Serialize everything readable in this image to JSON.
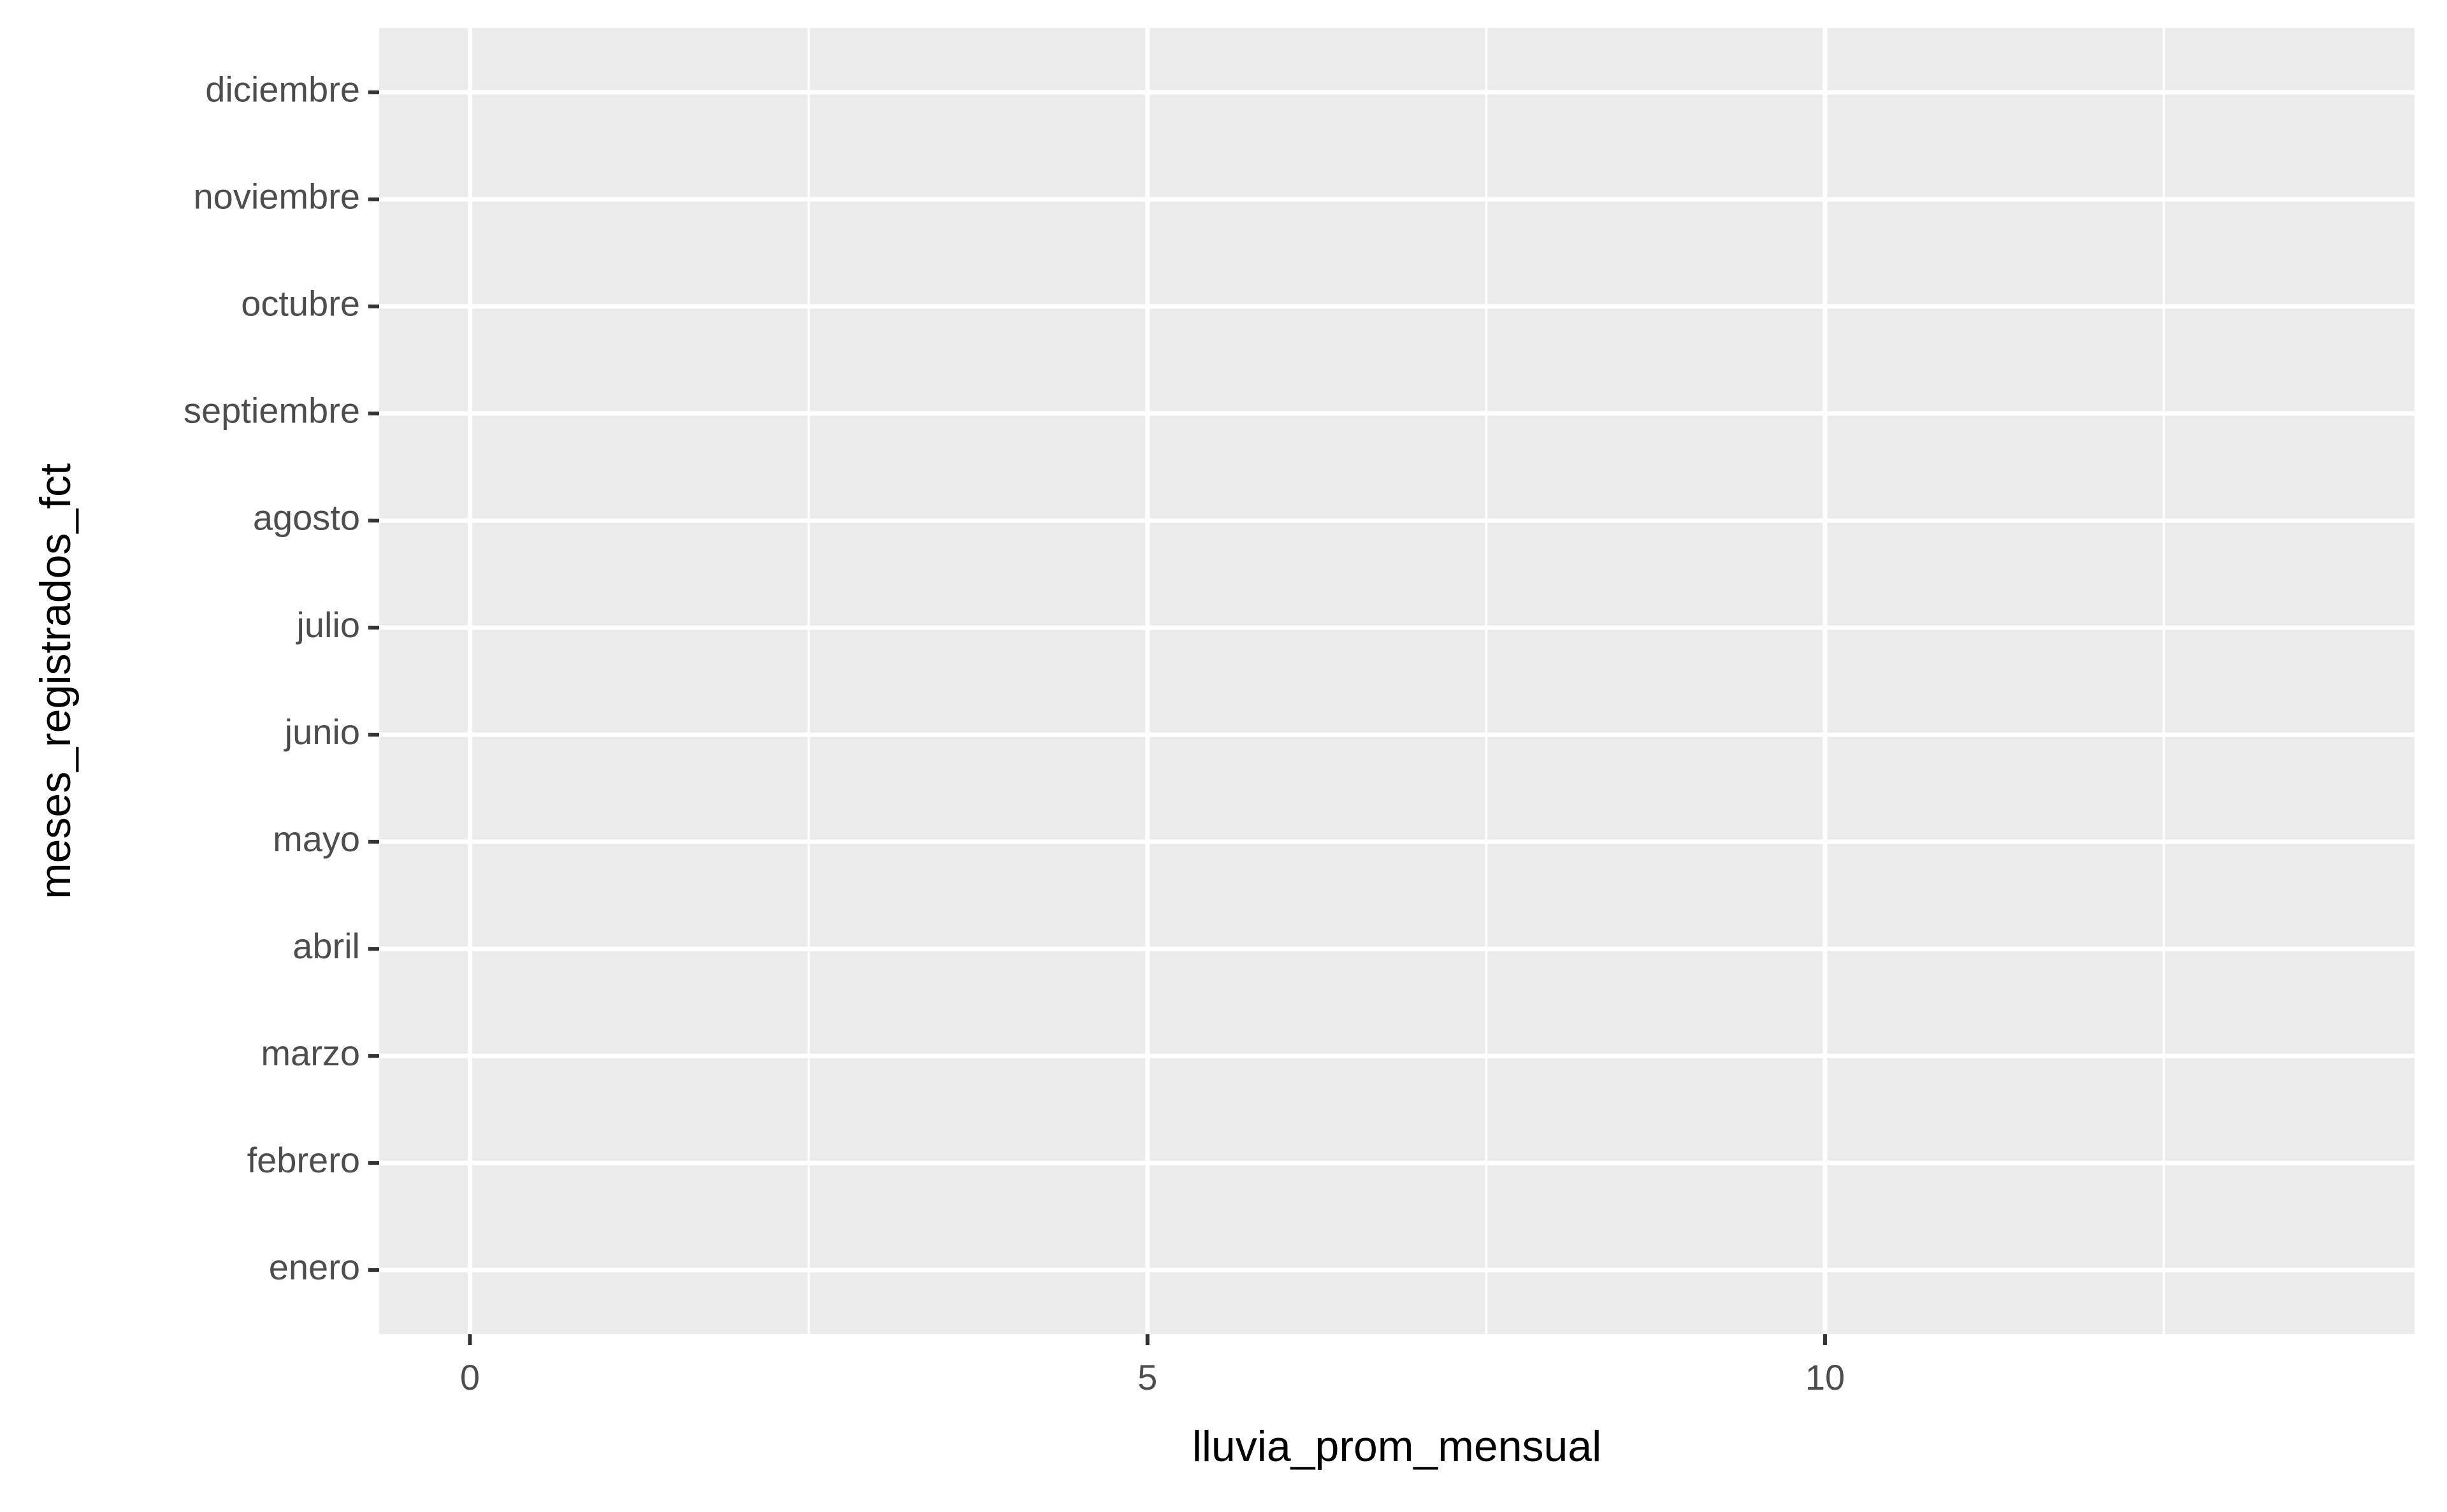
{
  "chart_data": {
    "type": "bar",
    "orientation": "horizontal",
    "x_label": "lluvia_prom_mensual",
    "y_label": "meses_registrados_fct",
    "categories": [
      "enero",
      "febrero",
      "marzo",
      "abril",
      "mayo",
      "junio",
      "julio",
      "agosto",
      "septiembre",
      "octubre",
      "noviembre",
      "diciembre"
    ],
    "xlim": [
      -0.67,
      14.35
    ],
    "xticks": [
      0,
      5,
      10
    ],
    "x_minor_ticks": [
      2.5,
      7.5,
      12.5
    ],
    "grid": true
  }
}
